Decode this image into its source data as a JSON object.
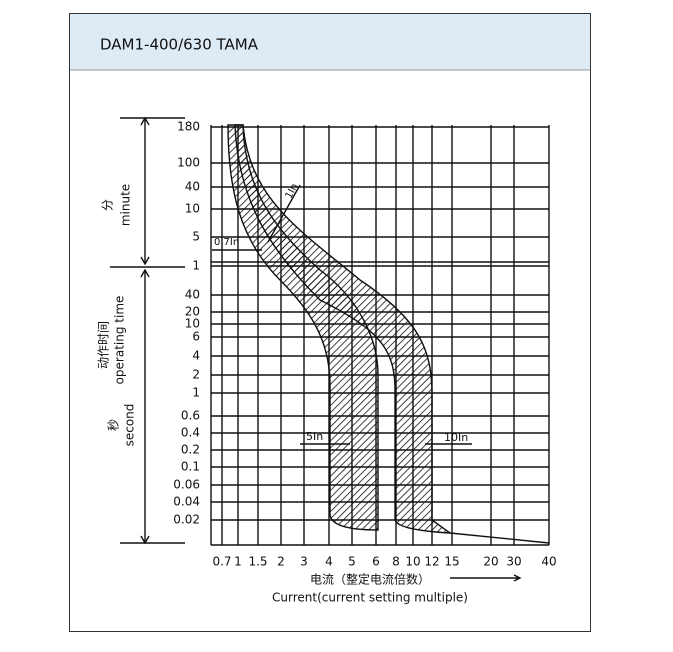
{
  "header": {
    "title": "DAM1-400/630 TAMA"
  },
  "y_ticks_minute": [
    180,
    100,
    40,
    10,
    5,
    1
  ],
  "y_ticks_second": [
    40,
    20,
    10,
    6,
    4,
    2,
    1,
    0.6,
    0.4,
    0.2,
    0.1,
    0.06,
    0.04,
    0.02
  ],
  "x_ticks": [
    0.7,
    1,
    1.5,
    2,
    3,
    4,
    5,
    6,
    8,
    10,
    12,
    15,
    20,
    30,
    40
  ],
  "left_labels": {
    "minute_cn": "分",
    "minute_en": "minute",
    "time_cn": "动作时间",
    "time_en": "operating time",
    "second_cn": "秒",
    "second_en": "second"
  },
  "annotations": {
    "in1": "1In",
    "in07": "0.7In",
    "in5": "5In",
    "in10": "10In"
  },
  "x_label_cn": "电流（整定电流倍数）",
  "x_label_en": "Current(current setting multiple)"
}
